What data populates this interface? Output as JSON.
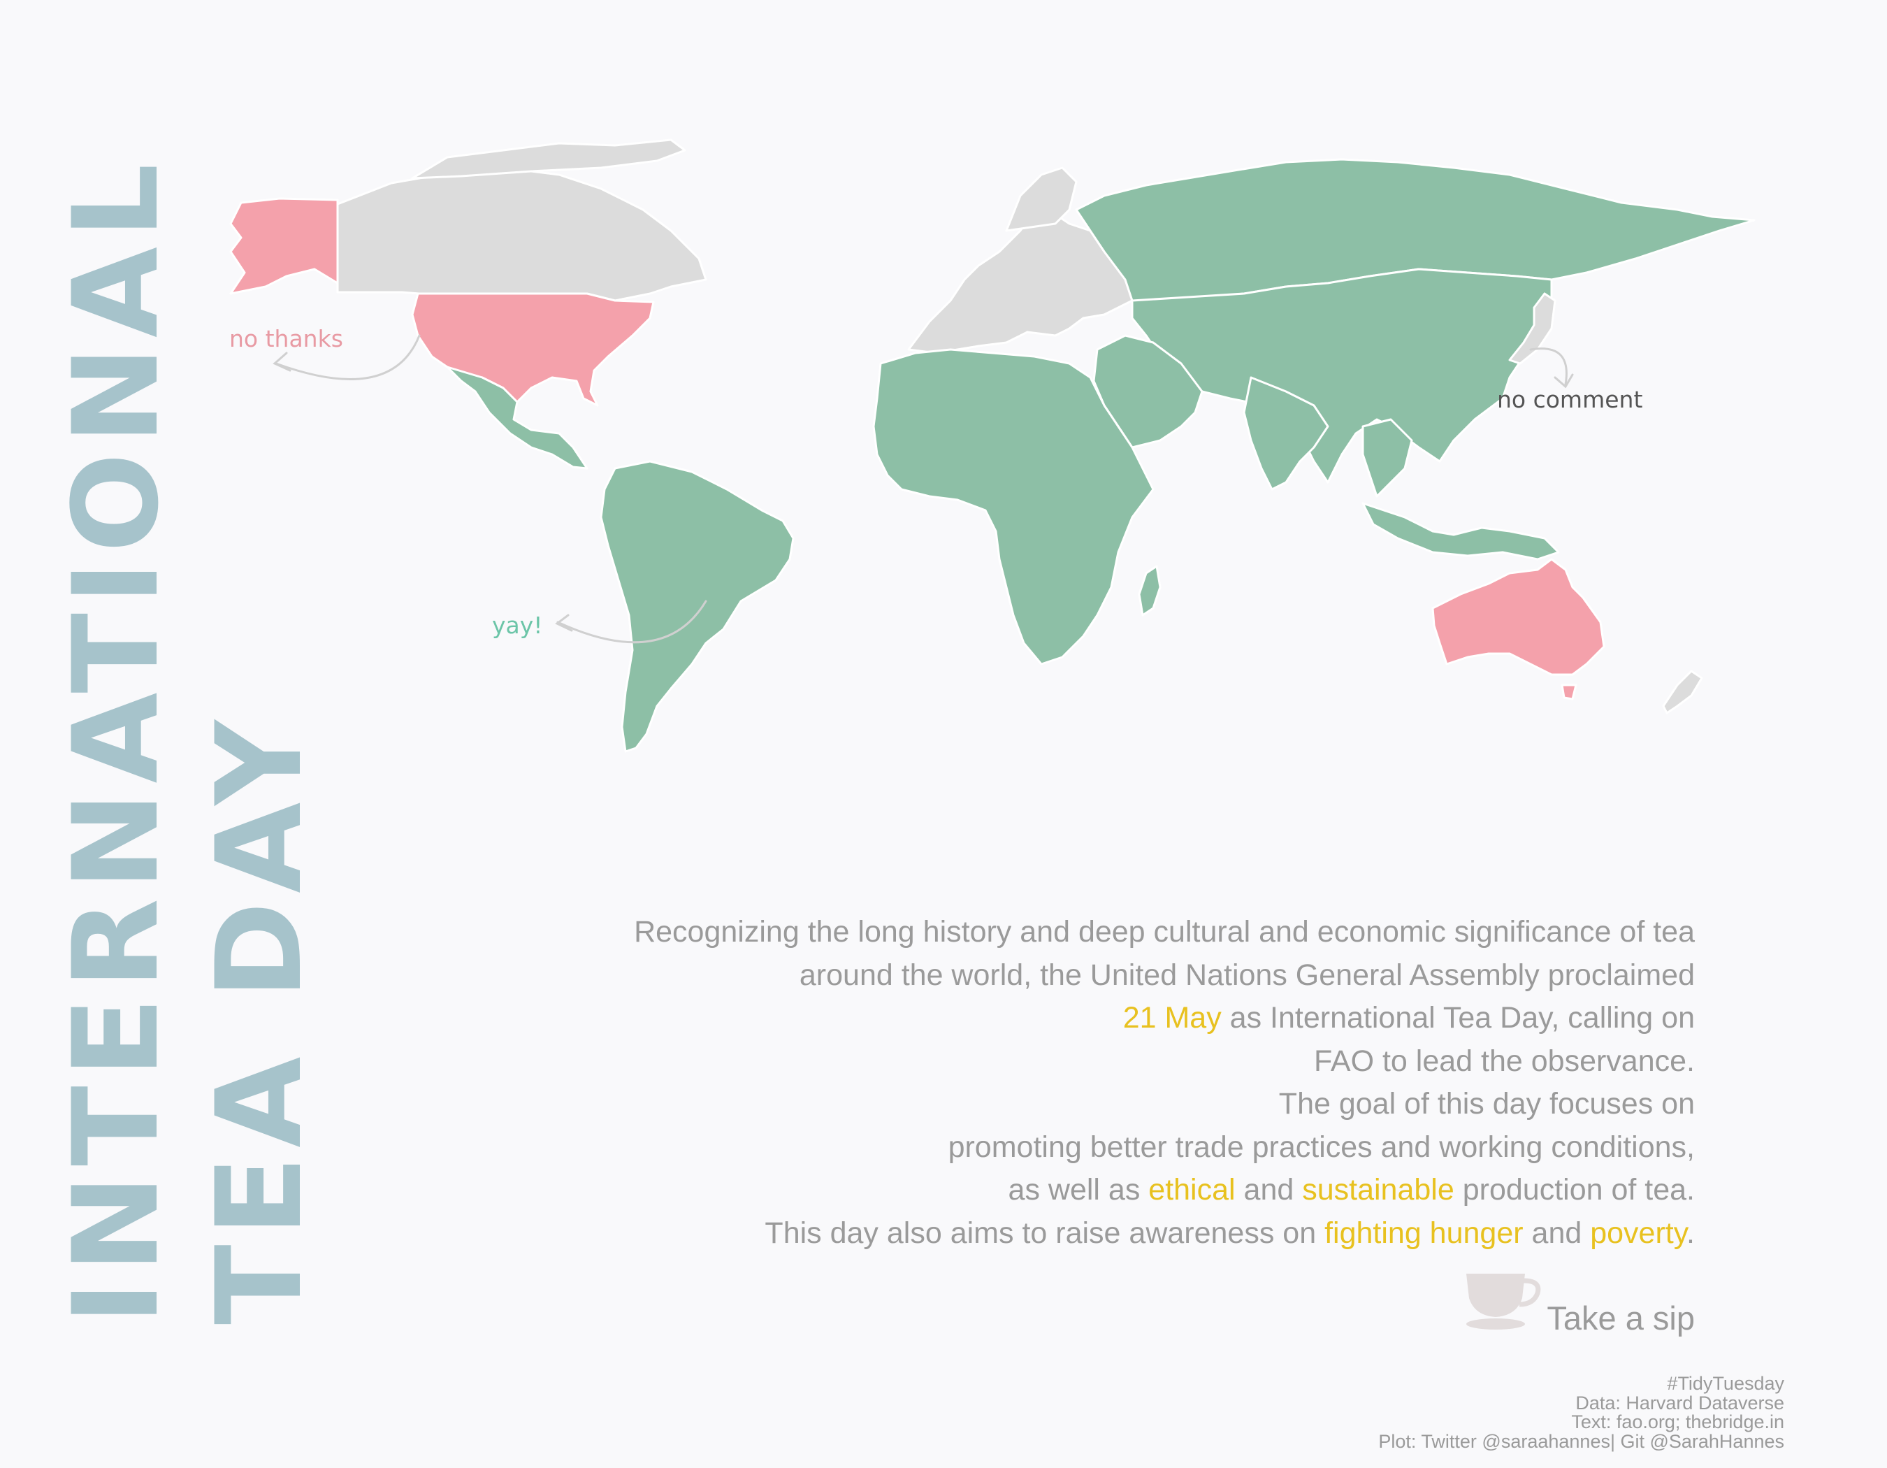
{
  "title": {
    "line1": "INTERNATIONAL",
    "line2": "TEA DAY"
  },
  "colors": {
    "background": "#f9f9fb",
    "tea_yes": "#8dbfa6",
    "tea_no": "#f4a1ab",
    "no_data": "#dcdcdc",
    "title": "#a6c3cb",
    "highlight": "#e8c11f",
    "body_text": "#9a9a9a"
  },
  "map": {
    "categories": [
      {
        "key": "no",
        "label": "no thanks",
        "color": "#f4a1ab",
        "regions": [
          "Alaska",
          "United States",
          "Australia"
        ]
      },
      {
        "key": "yes",
        "label": "yay!",
        "color": "#8dbfa6",
        "regions": [
          "Russia",
          "China",
          "India",
          "Africa",
          "South America",
          "Middle East",
          "Central Asia",
          "Southeast Asia",
          "Mexico"
        ]
      },
      {
        "key": "none",
        "label": "no comment",
        "color": "#dcdcdc",
        "regions": [
          "Canada",
          "Greenland",
          "Western Europe",
          "Japan",
          "Korea",
          "New Zealand"
        ]
      }
    ]
  },
  "annotations": {
    "no_thanks": "no thanks",
    "no_comment": "no comment",
    "yay": "yay!"
  },
  "description": {
    "l1": "Recognizing the long history and deep cultural and economic significance of tea",
    "l2": "around the world, the United Nations General Assembly proclaimed",
    "l3_hl": "21 May",
    "l3_rest": " as International Tea Day, calling on",
    "l4": "FAO to lead the observance.",
    "l5": "The goal of this day focuses on",
    "l6": "promoting better trade practices and working conditions,",
    "l7_a": "as well as ",
    "l7_hl1": "ethical",
    "l7_b": " and ",
    "l7_hl2": "sustainable",
    "l7_c": " production of tea.",
    "l8_a": "This day also aims to raise awareness on ",
    "l8_hl1": "fighting hunger",
    "l8_b": " and ",
    "l8_hl2": "poverty",
    "l8_c": "."
  },
  "sip": "Take a sip",
  "credits": {
    "hashtag": "#TidyTuesday",
    "data": "Data: Harvard Dataverse",
    "text": "Text: fao.org; thebridge.in",
    "plot": "Plot: Twitter @saraahannes| Git @SarahHannes"
  }
}
